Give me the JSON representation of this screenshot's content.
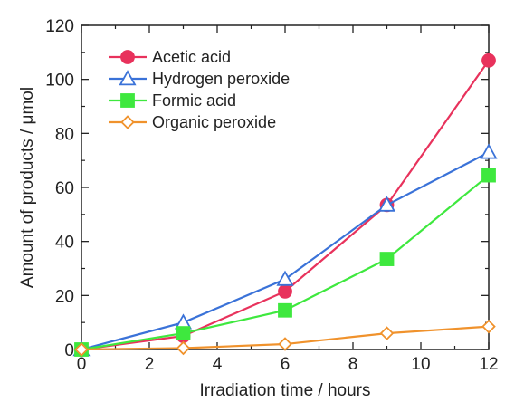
{
  "chart_data": {
    "type": "line",
    "xlabel": "Irradiation time / hours",
    "ylabel": "Amount of products / μmol",
    "xlim": [
      0,
      12
    ],
    "ylim": [
      0,
      120
    ],
    "x_ticks": [
      0,
      2,
      4,
      6,
      8,
      10,
      12
    ],
    "y_ticks": [
      0,
      20,
      40,
      60,
      80,
      100,
      120
    ],
    "x": [
      0,
      3,
      6,
      9,
      12
    ],
    "grid": false,
    "legend_position": "top-left",
    "series": [
      {
        "name": "Acetic acid",
        "color": "#e8325c",
        "marker": "filled-circle",
        "values": [
          0,
          5,
          21.5,
          53.5,
          107
        ]
      },
      {
        "name": "Hydrogen peroxide",
        "color": "#3a72d8",
        "marker": "open-triangle",
        "values": [
          0,
          10,
          26,
          53.5,
          73
        ]
      },
      {
        "name": "Formic acid",
        "color": "#3ee83e",
        "marker": "filled-square",
        "values": [
          0,
          6,
          14.5,
          33.5,
          64.5
        ]
      },
      {
        "name": "Organic peroxide",
        "color": "#f0922c",
        "marker": "open-diamond",
        "values": [
          0,
          0.5,
          2,
          6,
          8.5
        ]
      }
    ]
  }
}
